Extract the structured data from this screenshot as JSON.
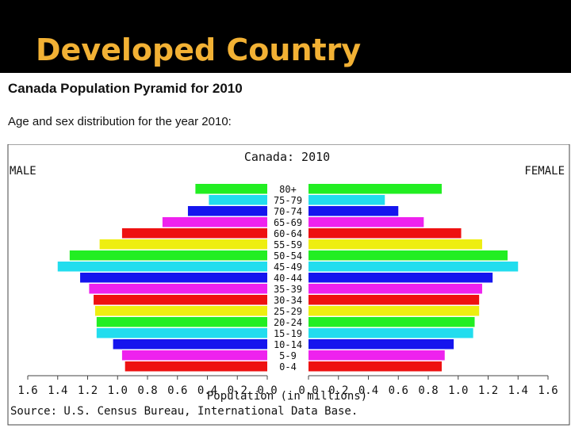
{
  "slide": {
    "title": "Developed Country"
  },
  "figure": {
    "heading": "Canada Population Pyramid for 2010",
    "subheading": "Age and sex distribution for the year 2010:"
  },
  "chart_data": {
    "type": "bar",
    "orientation": "horizontal-pyramid",
    "title": "Canada: 2010",
    "left_label": "MALE",
    "right_label": "FEMALE",
    "xlabel": "Population (in millions)",
    "source": "Source: U.S. Census Bureau, International Data Base.",
    "xlim": [
      0,
      1.6
    ],
    "ticks_left": [
      "1.6",
      "1.4",
      "1.2",
      "1.0",
      "0.8",
      "0.6",
      "0.4",
      "0.2",
      "0.0"
    ],
    "ticks_right": [
      "0.0",
      "0.2",
      "0.4",
      "0.6",
      "0.8",
      "1.0",
      "1.2",
      "1.4",
      "1.6"
    ],
    "categories": [
      "80+",
      "75-79",
      "70-74",
      "65-69",
      "60-64",
      "55-59",
      "50-54",
      "45-49",
      "40-44",
      "35-39",
      "30-34",
      "25-29",
      "20-24",
      "15-19",
      "10-14",
      "5-9",
      "0-4"
    ],
    "series": [
      {
        "name": "MALE",
        "values": [
          0.48,
          0.39,
          0.53,
          0.7,
          0.97,
          1.12,
          1.32,
          1.4,
          1.25,
          1.19,
          1.16,
          1.15,
          1.14,
          1.14,
          1.03,
          0.97,
          0.95
        ]
      },
      {
        "name": "FEMALE",
        "values": [
          0.89,
          0.51,
          0.6,
          0.77,
          1.02,
          1.16,
          1.33,
          1.4,
          1.23,
          1.16,
          1.14,
          1.14,
          1.11,
          1.1,
          0.97,
          0.91,
          0.89
        ]
      }
    ],
    "colors": [
      "#22ee22",
      "#22ddee",
      "#1515ee",
      "#ee22ee",
      "#ee1111",
      "#eeee11",
      "#22ee22",
      "#22ddee",
      "#1515ee",
      "#ee22ee",
      "#ee1111",
      "#eeee11",
      "#22ee22",
      "#22ddee",
      "#1515ee",
      "#ee22ee",
      "#ee1111"
    ]
  }
}
